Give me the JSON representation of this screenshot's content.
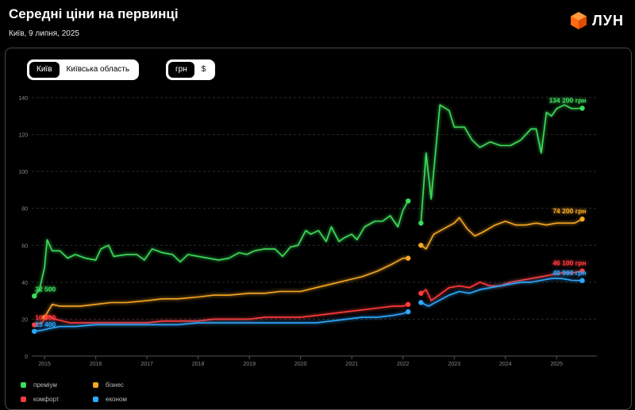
{
  "header": {
    "title": "Середні ціни на первинці",
    "subtitle": "Київ, 9 липня, 2025",
    "logo_text": "ЛУН",
    "logo_icon": "cube-icon"
  },
  "controls": {
    "region_options": [
      "Київ",
      "Київська область"
    ],
    "region_selected": "Київ",
    "currency_options": [
      "грн",
      "$"
    ],
    "currency_selected": "грн"
  },
  "colors": {
    "premium": "#3ddc5a",
    "business": "#f5a623",
    "comfort": "#ff3b3b",
    "econom": "#2ea8ff"
  },
  "chart_data": {
    "type": "line",
    "title": "Середні ціни на первинці",
    "xlabel": "",
    "ylabel": "",
    "units": "тис. грн/м²",
    "ylim": [
      0,
      140
    ],
    "xlim": [
      2014.75,
      2025.6
    ],
    "yticks": [
      0,
      20,
      40,
      60,
      80,
      100,
      120,
      140
    ],
    "xticks": [
      "2015",
      "2016",
      "2017",
      "2018",
      "2019",
      "2020",
      "2021",
      "2022",
      "2023",
      "2024",
      "2025"
    ],
    "grid": true,
    "legend_position": "bottom-left",
    "series": [
      {
        "key": "premium",
        "name": "преміум",
        "start_label": "32 500",
        "end_label": "134 200 грн",
        "segments": [
          [
            [
              2014.8,
              32.5
            ],
            [
              2014.9,
              36
            ],
            [
              2015.0,
              48
            ],
            [
              2015.05,
              63
            ],
            [
              2015.15,
              57
            ],
            [
              2015.3,
              57
            ],
            [
              2015.45,
              53
            ],
            [
              2015.6,
              55
            ],
            [
              2015.8,
              53
            ],
            [
              2016.0,
              52
            ],
            [
              2016.1,
              58
            ],
            [
              2016.25,
              60
            ],
            [
              2016.35,
              54
            ],
            [
              2016.6,
              55
            ],
            [
              2016.8,
              55
            ],
            [
              2016.95,
              52
            ],
            [
              2017.1,
              58
            ],
            [
              2017.3,
              56
            ],
            [
              2017.5,
              55
            ],
            [
              2017.65,
              51
            ],
            [
              2017.8,
              55
            ],
            [
              2018.0,
              54
            ],
            [
              2018.2,
              53
            ],
            [
              2018.4,
              52
            ],
            [
              2018.6,
              53
            ],
            [
              2018.8,
              56
            ],
            [
              2018.95,
              55
            ],
            [
              2019.1,
              57
            ],
            [
              2019.3,
              58
            ],
            [
              2019.5,
              58
            ],
            [
              2019.65,
              54
            ],
            [
              2019.8,
              59
            ],
            [
              2019.95,
              60
            ],
            [
              2020.1,
              68
            ],
            [
              2020.2,
              66
            ],
            [
              2020.35,
              68
            ],
            [
              2020.5,
              62
            ],
            [
              2020.6,
              70
            ],
            [
              2020.75,
              62
            ],
            [
              2020.85,
              64
            ],
            [
              2021.0,
              66
            ],
            [
              2021.1,
              63
            ],
            [
              2021.25,
              70
            ],
            [
              2021.45,
              73
            ],
            [
              2021.6,
              73
            ],
            [
              2021.75,
              76
            ],
            [
              2021.9,
              70
            ],
            [
              2022.0,
              79
            ],
            [
              2022.1,
              84
            ]
          ],
          [
            [
              2022.35,
              72
            ],
            [
              2022.45,
              110
            ],
            [
              2022.55,
              85
            ],
            [
              2022.72,
              136
            ],
            [
              2022.9,
              133
            ],
            [
              2023.0,
              124
            ],
            [
              2023.2,
              124
            ],
            [
              2023.35,
              117
            ],
            [
              2023.5,
              113
            ],
            [
              2023.7,
              116
            ],
            [
              2023.9,
              114
            ],
            [
              2024.1,
              114
            ],
            [
              2024.3,
              117
            ],
            [
              2024.5,
              123
            ],
            [
              2024.6,
              123
            ],
            [
              2024.7,
              110
            ],
            [
              2024.8,
              132
            ],
            [
              2024.9,
              130
            ],
            [
              2025.0,
              134
            ],
            [
              2025.15,
              136
            ],
            [
              2025.3,
              134
            ],
            [
              2025.5,
              134.2
            ]
          ]
        ]
      },
      {
        "key": "business",
        "name": "бізнес",
        "start_label": "",
        "end_label": "74 200 грн",
        "segments": [
          [
            [
              2015.0,
              21
            ],
            [
              2015.15,
              28
            ],
            [
              2015.3,
              27
            ],
            [
              2015.5,
              27
            ],
            [
              2015.7,
              27
            ],
            [
              2016.0,
              28
            ],
            [
              2016.3,
              29
            ],
            [
              2016.6,
              29
            ],
            [
              2017.0,
              30
            ],
            [
              2017.3,
              31
            ],
            [
              2017.6,
              31
            ],
            [
              2018.0,
              32
            ],
            [
              2018.3,
              33
            ],
            [
              2018.6,
              33
            ],
            [
              2019.0,
              34
            ],
            [
              2019.3,
              34
            ],
            [
              2019.6,
              35
            ],
            [
              2020.0,
              35
            ],
            [
              2020.3,
              37
            ],
            [
              2020.6,
              39
            ],
            [
              2020.9,
              41
            ],
            [
              2021.2,
              43
            ],
            [
              2021.5,
              46
            ],
            [
              2021.8,
              50
            ],
            [
              2022.0,
              53
            ],
            [
              2022.1,
              53
            ]
          ],
          [
            [
              2022.35,
              60
            ],
            [
              2022.45,
              58
            ],
            [
              2022.6,
              66
            ],
            [
              2022.8,
              69
            ],
            [
              2023.0,
              72
            ],
            [
              2023.1,
              75
            ],
            [
              2023.25,
              69
            ],
            [
              2023.4,
              65
            ],
            [
              2023.55,
              67
            ],
            [
              2023.8,
              71
            ],
            [
              2024.0,
              73
            ],
            [
              2024.2,
              71
            ],
            [
              2024.4,
              71
            ],
            [
              2024.6,
              72
            ],
            [
              2024.8,
              71
            ],
            [
              2025.0,
              72
            ],
            [
              2025.2,
              72
            ],
            [
              2025.35,
              72
            ],
            [
              2025.5,
              74.2
            ]
          ]
        ]
      },
      {
        "key": "comfort",
        "name": "комфорт",
        "start_label": "16 900",
        "end_label": "46 100 грн",
        "segments": [
          [
            [
              2014.8,
              16.9
            ],
            [
              2014.95,
              18
            ],
            [
              2015.05,
              22
            ],
            [
              2015.2,
              20
            ],
            [
              2015.5,
              18
            ],
            [
              2015.8,
              18
            ],
            [
              2016.0,
              18
            ],
            [
              2016.3,
              18
            ],
            [
              2016.6,
              18
            ],
            [
              2017.0,
              18
            ],
            [
              2017.3,
              19
            ],
            [
              2017.6,
              19
            ],
            [
              2018.0,
              19
            ],
            [
              2018.3,
              20
            ],
            [
              2018.6,
              20
            ],
            [
              2019.0,
              20
            ],
            [
              2019.3,
              21
            ],
            [
              2019.6,
              21
            ],
            [
              2020.0,
              21
            ],
            [
              2020.3,
              22
            ],
            [
              2020.6,
              23
            ],
            [
              2020.9,
              24
            ],
            [
              2021.2,
              25
            ],
            [
              2021.5,
              26
            ],
            [
              2021.8,
              27
            ],
            [
              2022.0,
              27
            ],
            [
              2022.1,
              28
            ]
          ],
          [
            [
              2022.35,
              34
            ],
            [
              2022.45,
              36
            ],
            [
              2022.55,
              30
            ],
            [
              2022.7,
              33
            ],
            [
              2022.9,
              37
            ],
            [
              2023.1,
              38
            ],
            [
              2023.3,
              37
            ],
            [
              2023.5,
              40
            ],
            [
              2023.7,
              38
            ],
            [
              2023.9,
              38
            ],
            [
              2024.1,
              40
            ],
            [
              2024.3,
              41
            ],
            [
              2024.5,
              42
            ],
            [
              2024.7,
              43
            ],
            [
              2024.9,
              44
            ],
            [
              2025.1,
              45
            ],
            [
              2025.3,
              45
            ],
            [
              2025.5,
              46.1
            ]
          ]
        ]
      },
      {
        "key": "econom",
        "name": "економ",
        "start_label": "13 400",
        "end_label": "40 900 грн",
        "segments": [
          [
            [
              2014.8,
              13.4
            ],
            [
              2014.95,
              14
            ],
            [
              2015.1,
              15
            ],
            [
              2015.3,
              16
            ],
            [
              2015.6,
              16
            ],
            [
              2016.0,
              17
            ],
            [
              2016.3,
              17
            ],
            [
              2016.6,
              17
            ],
            [
              2017.0,
              17
            ],
            [
              2017.3,
              17
            ],
            [
              2017.6,
              17
            ],
            [
              2018.0,
              18
            ],
            [
              2018.3,
              18
            ],
            [
              2018.6,
              18
            ],
            [
              2019.0,
              18
            ],
            [
              2019.3,
              18
            ],
            [
              2019.6,
              18
            ],
            [
              2020.0,
              18
            ],
            [
              2020.3,
              18
            ],
            [
              2020.6,
              19
            ],
            [
              2020.9,
              20
            ],
            [
              2021.2,
              21
            ],
            [
              2021.5,
              21
            ],
            [
              2021.8,
              22
            ],
            [
              2022.0,
              23
            ],
            [
              2022.1,
              24
            ]
          ],
          [
            [
              2022.35,
              29
            ],
            [
              2022.5,
              27
            ],
            [
              2022.7,
              30
            ],
            [
              2022.9,
              33
            ],
            [
              2023.1,
              35
            ],
            [
              2023.3,
              34
            ],
            [
              2023.5,
              36
            ],
            [
              2023.7,
              37
            ],
            [
              2023.9,
              38
            ],
            [
              2024.1,
              39
            ],
            [
              2024.3,
              40
            ],
            [
              2024.5,
              40
            ],
            [
              2024.7,
              41
            ],
            [
              2024.9,
              42
            ],
            [
              2025.1,
              42
            ],
            [
              2025.3,
              41
            ],
            [
              2025.5,
              40.9
            ]
          ]
        ]
      }
    ]
  }
}
